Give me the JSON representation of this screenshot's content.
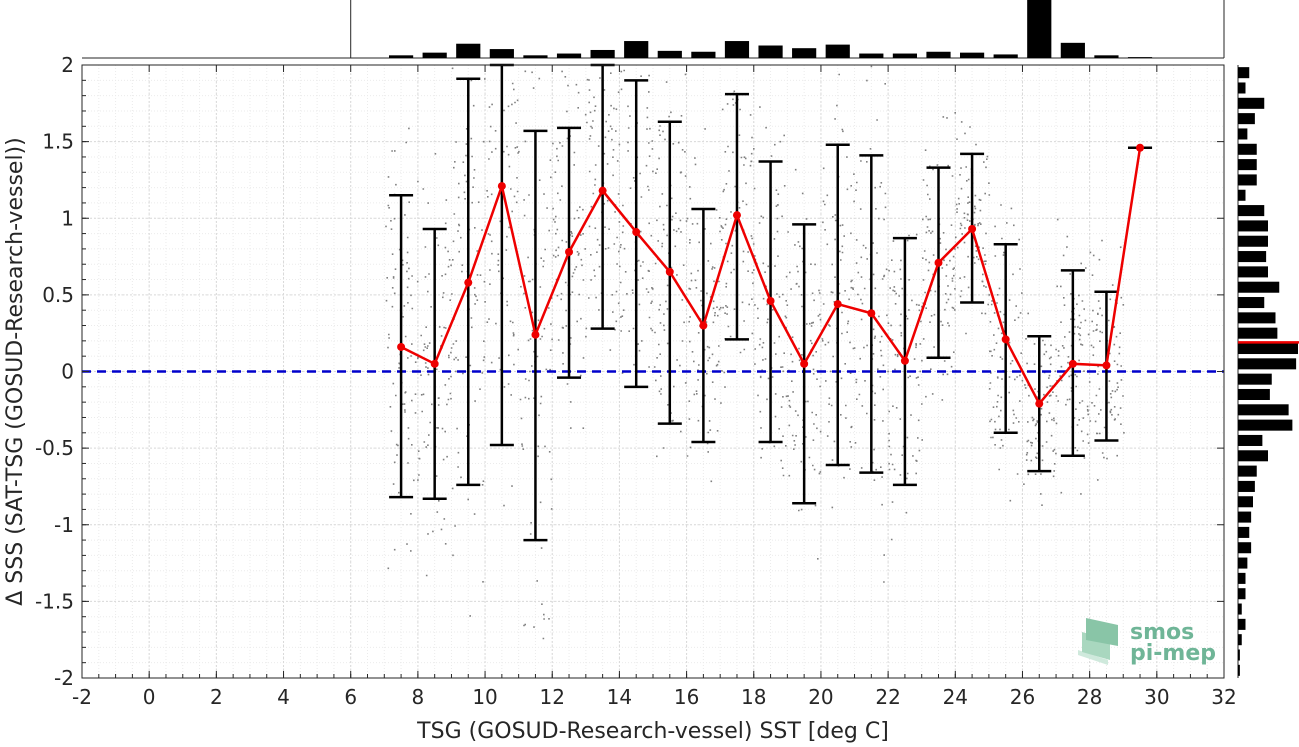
{
  "chart_data": {
    "type": "scatter",
    "xlabel": "TSG (GOSUD-Research-vessel) SST [deg C]",
    "ylabel": "Δ SSS (SAT-TSG (GOSUD-Research-vessel))",
    "xlim": [
      -2,
      32
    ],
    "ylim": [
      -2,
      2
    ],
    "x_ticks": [
      -2,
      0,
      2,
      4,
      6,
      8,
      10,
      12,
      14,
      16,
      18,
      20,
      22,
      24,
      26,
      28,
      30,
      32
    ],
    "y_ticks": [
      -2,
      -1.5,
      -1,
      -0.5,
      0,
      0.5,
      1,
      1.5,
      2
    ],
    "grid": true,
    "minor_grid": true,
    "zero_reference_line": {
      "y": 0,
      "color": "#0000cc",
      "style": "dashed"
    },
    "scatter_color": "#808080",
    "mean_line_color": "#ee0000",
    "errorbar_color": "#000000",
    "binned_mean": {
      "x": [
        7.5,
        8.5,
        9.5,
        10.5,
        11.5,
        12.5,
        13.5,
        14.5,
        15.5,
        16.5,
        17.5,
        18.5,
        19.5,
        20.5,
        21.5,
        22.5,
        23.5,
        24.5,
        25.5,
        26.5,
        27.5,
        28.5,
        29.5
      ],
      "mean": [
        0.16,
        0.05,
        0.58,
        1.21,
        0.24,
        0.78,
        1.18,
        0.91,
        0.65,
        0.3,
        1.02,
        0.46,
        0.05,
        0.44,
        0.38,
        0.07,
        0.71,
        0.93,
        0.21,
        -0.21,
        0.05,
        0.04,
        1.46
      ],
      "upper": [
        1.15,
        0.93,
        1.91,
        2.0,
        1.57,
        1.59,
        2.0,
        1.9,
        1.63,
        1.06,
        1.81,
        1.37,
        0.96,
        1.48,
        1.41,
        0.87,
        1.33,
        1.42,
        0.83,
        0.23,
        0.66,
        0.52,
        1.46
      ],
      "lower": [
        -0.82,
        -0.83,
        -0.74,
        -0.48,
        -1.1,
        -0.04,
        0.28,
        -0.1,
        -0.34,
        -0.46,
        0.21,
        -0.46,
        -0.86,
        -0.61,
        -0.66,
        -0.74,
        0.09,
        0.45,
        -0.4,
        -0.65,
        -0.55,
        -0.45,
        1.46
      ]
    },
    "top_histogram": {
      "bin_centers": [
        7.5,
        8.5,
        9.5,
        10.5,
        11.5,
        12.5,
        13.5,
        14.5,
        15.5,
        16.5,
        17.5,
        18.5,
        19.5,
        20.5,
        21.5,
        22.5,
        23.5,
        24.5,
        25.5,
        26.5,
        27.5,
        28.5,
        29.5
      ],
      "counts": [
        3,
        6,
        16,
        10,
        3,
        5,
        9,
        19,
        8,
        7,
        19,
        14,
        11,
        15,
        5,
        5,
        7,
        6,
        4,
        65,
        17,
        3,
        1
      ]
    },
    "right_histogram": {
      "bin_centers": [
        1.95,
        1.85,
        1.75,
        1.65,
        1.55,
        1.45,
        1.35,
        1.25,
        1.15,
        1.05,
        0.95,
        0.85,
        0.75,
        0.65,
        0.55,
        0.45,
        0.35,
        0.25,
        0.15,
        0.05,
        -0.05,
        -0.15,
        -0.25,
        -0.35,
        -0.45,
        -0.55,
        -0.65,
        -0.75,
        -0.85,
        -0.95,
        -1.05,
        -1.15,
        -1.25,
        -1.35,
        -1.45,
        -1.55,
        -1.65,
        -1.75,
        -1.85,
        -1.95
      ],
      "counts": [
        6,
        4,
        14,
        9,
        5,
        10,
        10,
        10,
        4,
        14,
        16,
        16,
        15,
        16,
        22,
        14,
        20,
        21,
        32,
        31,
        18,
        17,
        27,
        29,
        13,
        16,
        10,
        9,
        8,
        7,
        6,
        7,
        5,
        4,
        4,
        2,
        4,
        2,
        1,
        1
      ],
      "mean_marker": {
        "y": 0.19,
        "color": "#ee0000"
      }
    }
  },
  "logo": {
    "line1": "smos",
    "line2": "pi-mep",
    "color": "#6fb597"
  }
}
